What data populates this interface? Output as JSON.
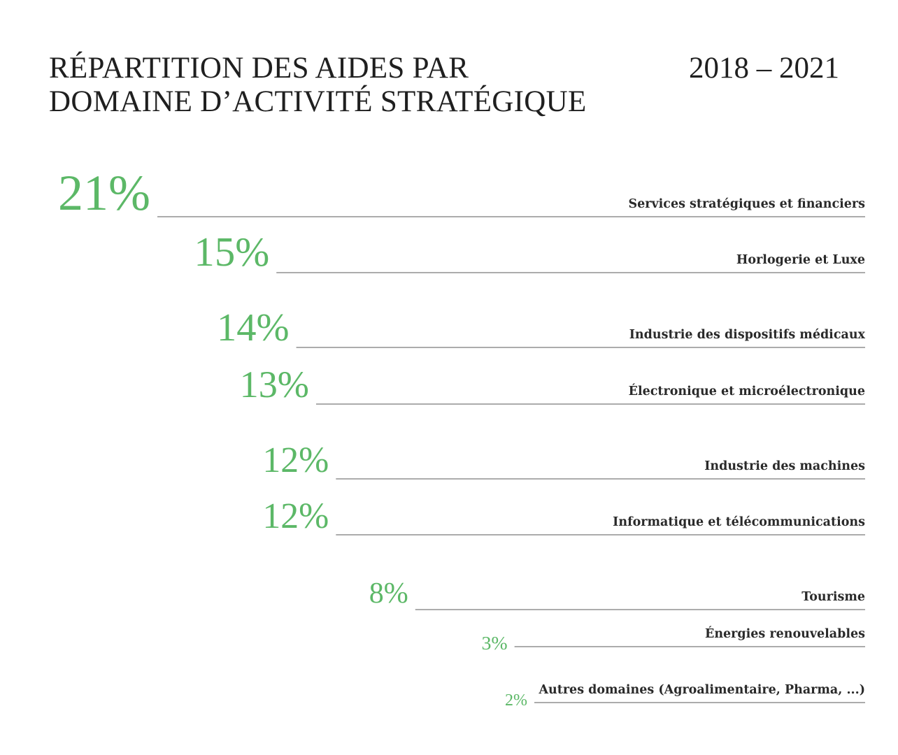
{
  "header": {
    "title_line1": "RÉPARTITION DES AIDES PAR",
    "title_line2": "DOMAINE D’ACTIVITÉ STRATÉGIQUE",
    "period": "2018 – 2021"
  },
  "colors": {
    "accent": "#5cb867",
    "text": "#1f1f1f",
    "rule": "#7a7a7a"
  },
  "chart_data": {
    "type": "bar",
    "title": "RÉPARTITION DES AIDES PAR DOMAINE D’ACTIVITÉ STRATÉGIQUE",
    "subtitle": "2018 – 2021",
    "unit": "%",
    "categories": [
      "Services stratégiques et financiers",
      "Horlogerie et Luxe",
      "Industrie des dispositifs médicaux",
      "Électronique et microélectronique",
      "Industrie des machines",
      "Informatique et télécommunications",
      "Tourisme",
      "Énergies renouvelables",
      "Autres domaines (Agroalimentaire, Pharma, ...)"
    ],
    "values": [
      21,
      15,
      14,
      13,
      12,
      12,
      8,
      3,
      2
    ],
    "labels": [
      "21%",
      "15%",
      "14%",
      "13%",
      "12%",
      "12%",
      "8%",
      "3%",
      "2%"
    ],
    "orientation": "horizontal",
    "grid": false,
    "legend": "none"
  }
}
